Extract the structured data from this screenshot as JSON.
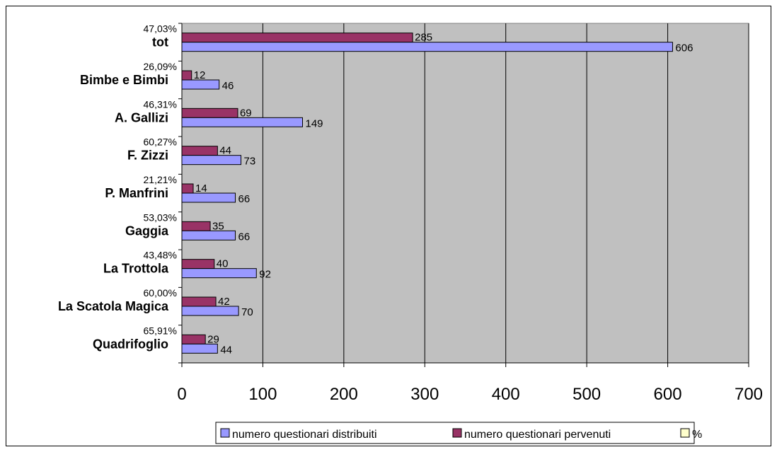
{
  "chart_data": {
    "type": "bar",
    "orientation": "horizontal",
    "categories": [
      "tot",
      "Bimbe e Bimbi",
      "A. Gallizi",
      "F. Zizzi",
      "P. Manfrini",
      "Gaggia",
      "La Trottola",
      "La Scatola Magica",
      "Quadrifoglio"
    ],
    "series": [
      {
        "name": "numero questionari distribuiti",
        "color": "#9999ff",
        "values": [
          606,
          46,
          149,
          73,
          66,
          66,
          92,
          70,
          44
        ]
      },
      {
        "name": "numero questionari pervenuti",
        "color": "#993366",
        "values": [
          285,
          12,
          69,
          44,
          14,
          35,
          40,
          42,
          29
        ]
      },
      {
        "name": "%",
        "color": "#ffffcc",
        "values": [
          47.03,
          26.09,
          46.31,
          60.27,
          21.21,
          53.03,
          43.48,
          60.0,
          65.91
        ]
      }
    ],
    "percent_labels": [
      "47,03%",
      "26,09%",
      "46,31%",
      "60,27%",
      "21,21%",
      "53,03%",
      "43,48%",
      "60,00%",
      "65,91%"
    ],
    "xlim": [
      0,
      700
    ],
    "xticks": [
      "0",
      "100",
      "200",
      "300",
      "400",
      "500",
      "600",
      "700"
    ],
    "grid": true,
    "plot_background": "#c0c0c0",
    "legend_position": "bottom"
  }
}
